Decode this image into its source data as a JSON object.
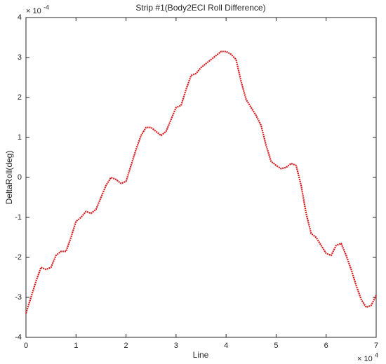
{
  "chart_data": {
    "type": "line",
    "title": "Strip #1(Body2ECI Roll Difference)",
    "x_label": "Line",
    "y_label": "DeltaRoll(deg)",
    "x_scale_base": "× 10",
    "x_scale_exponent": "4",
    "y_scale_base": "× 10",
    "y_scale_exponent": "-4",
    "xlim": [
      0,
      7
    ],
    "ylim": [
      -4,
      4
    ],
    "xticks": [
      0,
      1,
      2,
      3,
      4,
      5,
      6,
      7
    ],
    "yticks": [
      -4,
      -3,
      -2,
      -1,
      0,
      1,
      2,
      3,
      4
    ],
    "grid": false,
    "series": [
      {
        "color": "#d7191c",
        "x": [
          0,
          0.1,
          0.2,
          0.3,
          0.4,
          0.5,
          0.6,
          0.7,
          0.8,
          0.9,
          1.0,
          1.1,
          1.2,
          1.3,
          1.4,
          1.5,
          1.6,
          1.7,
          1.8,
          1.9,
          2.0,
          2.1,
          2.2,
          2.3,
          2.4,
          2.5,
          2.6,
          2.7,
          2.8,
          2.9,
          3.0,
          3.1,
          3.2,
          3.3,
          3.4,
          3.5,
          3.6,
          3.7,
          3.8,
          3.9,
          4.0,
          4.1,
          4.2,
          4.3,
          4.4,
          4.5,
          4.6,
          4.7,
          4.8,
          4.9,
          5.0,
          5.1,
          5.2,
          5.3,
          5.4,
          5.5,
          5.6,
          5.7,
          5.8,
          5.9,
          6.0,
          6.1,
          6.2,
          6.3,
          6.4,
          6.5,
          6.6,
          6.7,
          6.8,
          6.9,
          7.0
        ],
        "values": [
          -3.4,
          -3.0,
          -2.6,
          -2.25,
          -2.3,
          -2.25,
          -1.95,
          -1.85,
          -1.85,
          -1.5,
          -1.1,
          -1.0,
          -0.85,
          -0.9,
          -0.8,
          -0.5,
          -0.2,
          0.0,
          -0.05,
          -0.15,
          -0.1,
          0.3,
          0.7,
          1.05,
          1.25,
          1.25,
          1.15,
          1.05,
          1.15,
          1.45,
          1.75,
          1.8,
          2.2,
          2.55,
          2.6,
          2.75,
          2.85,
          2.95,
          3.05,
          3.15,
          3.15,
          3.08,
          2.95,
          2.4,
          1.95,
          1.75,
          1.55,
          1.3,
          0.8,
          0.4,
          0.3,
          0.22,
          0.25,
          0.35,
          0.3,
          -0.2,
          -0.9,
          -1.4,
          -1.5,
          -1.7,
          -1.9,
          -1.95,
          -1.7,
          -1.65,
          -1.95,
          -2.3,
          -2.7,
          -3.05,
          -3.25,
          -3.2,
          -2.95
        ]
      }
    ]
  }
}
